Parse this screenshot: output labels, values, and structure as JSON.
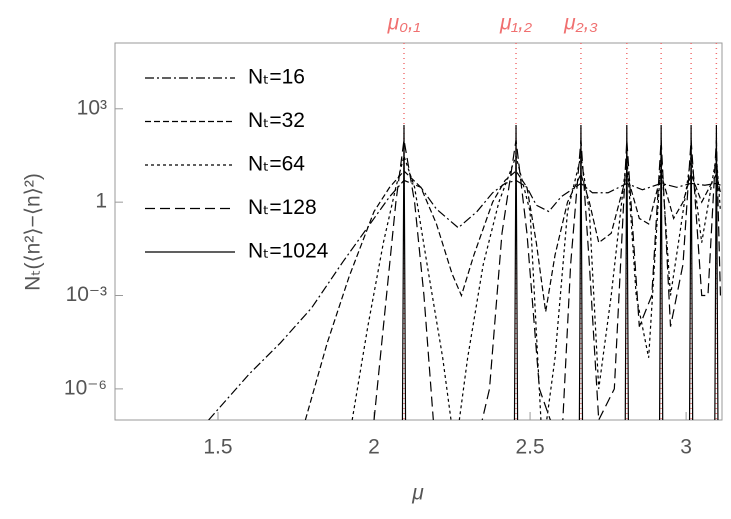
{
  "chart_data": {
    "type": "line",
    "x_label": "μ",
    "y_label": "Nₜ(⟨n²⟩−⟨n⟩²)",
    "xlim": [
      1.17,
      3.115
    ],
    "xticks": [
      1.5,
      2,
      2.5,
      3
    ],
    "ylim": [
      1e-07,
      130000
    ],
    "y_log": true,
    "yticks": [
      {
        "value": 1000,
        "label": "10³"
      },
      1,
      {
        "value": 0.001,
        "label": "10⁻³"
      },
      {
        "value": 1e-06,
        "label": "10⁻⁶"
      }
    ],
    "legend": "upper left",
    "resonances": {
      "color": "#f07070",
      "x": [
        2.096,
        2.455,
        2.663,
        2.81,
        2.92,
        3.016,
        3.097
      ],
      "labels": [
        "μ₀,₁",
        "μ₁,₂",
        "μ₂,₃",
        null,
        null,
        null,
        null
      ]
    },
    "series": [
      {
        "name": "Nₜ=16",
        "color": "#000000",
        "dash": "9 3 2 3",
        "x": [
          1.47,
          1.6,
          1.7,
          1.8,
          1.9,
          2.0,
          2.05,
          2.096,
          2.15,
          2.2,
          2.27,
          2.33,
          2.38,
          2.42,
          2.455,
          2.49,
          2.52,
          2.56,
          2.6,
          2.663,
          2.7,
          2.75,
          2.81,
          2.86,
          2.92,
          2.97,
          3.016,
          3.06,
          3.097,
          3.11
        ],
        "values": [
          1e-07,
          3e-06,
          3e-05,
          0.0004,
          0.012,
          0.3,
          1.5,
          5,
          3,
          0.6,
          0.15,
          0.5,
          2,
          4,
          5,
          3,
          0.8,
          0.5,
          1.5,
          4,
          2,
          2,
          4,
          2.5,
          4,
          3,
          4,
          3.5,
          4,
          3.5
        ]
      },
      {
        "name": "Nₜ=32",
        "color": "#000000",
        "dash": "6 3",
        "x": [
          1.78,
          1.85,
          1.92,
          2.0,
          2.05,
          2.096,
          2.15,
          2.2,
          2.25,
          2.28,
          2.32,
          2.38,
          2.42,
          2.455,
          2.49,
          2.52,
          2.55,
          2.58,
          2.62,
          2.663,
          2.69,
          2.72,
          2.76,
          2.81,
          2.85,
          2.88,
          2.92,
          2.96,
          2.99,
          3.016,
          3.05,
          3.097,
          3.11
        ],
        "values": [
          1e-07,
          3e-05,
          0.004,
          0.5,
          3,
          10,
          3,
          0.2,
          0.005,
          0.001,
          0.02,
          1,
          5,
          10,
          3,
          0.05,
          0.0003,
          0.02,
          1,
          8,
          1,
          0.05,
          0.1,
          8,
          0.3,
          0.2,
          8,
          0.3,
          1,
          8,
          1,
          8,
          2
        ]
      },
      {
        "name": "Nₜ=64",
        "color": "#000000",
        "dash": "3 3",
        "x": [
          1.93,
          1.98,
          2.03,
          2.07,
          2.096,
          2.13,
          2.17,
          2.22,
          2.26,
          2.3,
          2.35,
          2.4,
          2.455,
          2.5,
          2.54,
          2.58,
          2.62,
          2.663,
          2.69,
          2.72,
          2.76,
          2.81,
          2.84,
          2.88,
          2.92,
          2.95,
          2.98,
          3.016,
          3.05,
          3.097,
          3.11
        ],
        "values": [
          1e-07,
          0.0001,
          0.05,
          3,
          30,
          3,
          0.01,
          1e-05,
          1e-08,
          1e-05,
          0.01,
          1,
          30,
          0.5,
          1e-08,
          1e-05,
          0.5,
          30,
          0.5,
          1e-06,
          0.001,
          30,
          0.001,
          1e-05,
          30,
          0.001,
          0.1,
          30,
          0.05,
          30,
          0.5
        ]
      },
      {
        "name": "Nₜ=128",
        "color": "#000000",
        "dash": "10 5",
        "x": [
          2.0,
          2.04,
          2.07,
          2.096,
          2.13,
          2.16,
          2.19,
          2.3,
          2.37,
          2.41,
          2.455,
          2.49,
          2.53,
          2.6,
          2.63,
          2.663,
          2.69,
          2.72,
          2.77,
          2.81,
          2.85,
          2.89,
          2.92,
          2.95,
          2.99,
          3.016,
          3.05,
          3.07,
          3.097,
          3.11
        ],
        "values": [
          1e-07,
          0.001,
          1,
          100,
          1,
          0.001,
          1e-07,
          1e-09,
          1e-06,
          0.1,
          100,
          0.1,
          1e-06,
          1e-08,
          0.01,
          100,
          0.01,
          1e-07,
          1e-06,
          100,
          0.0001,
          0.001,
          100,
          0.0001,
          0.01,
          100,
          0.001,
          0.001,
          100,
          0.001
        ]
      },
      {
        "name": "Nₜ=1024",
        "color": "#000000",
        "dash": "none",
        "x": [
          2.09,
          2.096,
          2.102,
          2.449,
          2.455,
          2.461,
          2.657,
          2.663,
          2.669,
          2.804,
          2.81,
          2.816,
          2.914,
          2.92,
          2.926,
          3.01,
          3.016,
          3.022,
          3.091,
          3.097,
          3.103
        ],
        "values": [
          1e-09,
          300,
          1e-09,
          1e-09,
          300,
          1e-09,
          1e-09,
          300,
          1e-09,
          1e-09,
          300,
          1e-09,
          1e-09,
          300,
          1e-09,
          1e-09,
          300,
          1e-09,
          1e-09,
          300,
          1e-09
        ]
      }
    ]
  }
}
